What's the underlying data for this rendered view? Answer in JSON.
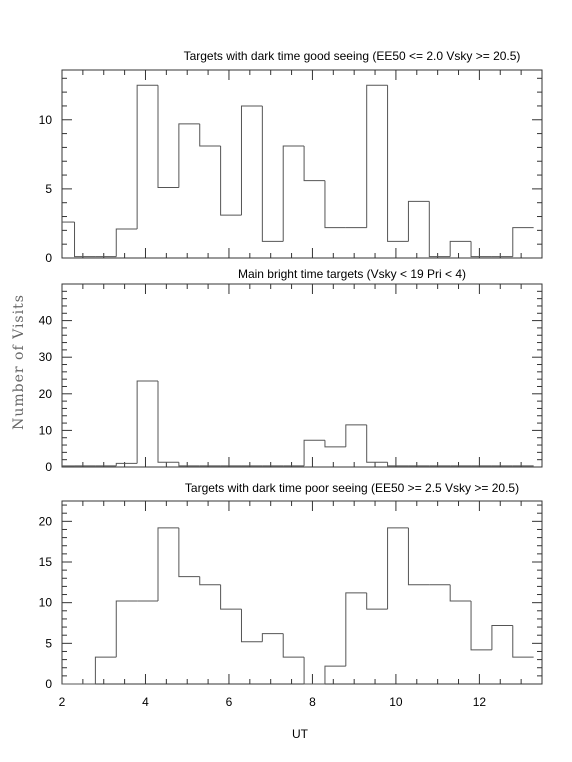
{
  "ylabel": "Number of Visits",
  "xlabel": "UT",
  "chart_data": [
    {
      "type": "bar",
      "title": "Targets with dark time good seeing (EE50 <= 2.0 Vsky >= 20.5)",
      "bin_edges": [
        1.95,
        2.3,
        2.8,
        3.3,
        3.8,
        4.3,
        4.8,
        5.3,
        5.8,
        6.3,
        6.8,
        7.3,
        7.8,
        8.3,
        8.8,
        9.3,
        9.8,
        10.3,
        10.8,
        11.3,
        11.8,
        12.3,
        12.8,
        13.3
      ],
      "values": [
        2.6,
        0.1,
        0.1,
        2.1,
        12.5,
        5.1,
        9.7,
        8.1,
        3.1,
        11.0,
        1.2,
        8.1,
        5.6,
        2.2,
        2.2,
        12.5,
        1.2,
        4.1,
        0.1,
        1.2,
        0.1,
        0.1,
        2.2
      ],
      "xlim": [
        2,
        13.5
      ],
      "ylim": [
        0,
        13.6
      ],
      "yticks": [
        0,
        5,
        10
      ],
      "xticks": [
        2,
        4,
        6,
        8,
        10,
        12
      ],
      "show_x_tick_labels": false
    },
    {
      "type": "bar",
      "title": "Main bright time targets (Vsky < 19 Pri < 4)",
      "bin_edges": [
        1.95,
        2.3,
        2.8,
        3.3,
        3.8,
        4.3,
        4.8,
        5.3,
        5.8,
        6.3,
        6.8,
        7.3,
        7.8,
        8.3,
        8.8,
        9.3,
        9.8,
        10.3,
        10.8,
        11.3,
        11.8,
        12.3,
        12.8,
        13.3
      ],
      "values": [
        0.3,
        0.3,
        0.3,
        1.0,
        23.5,
        1.3,
        0.3,
        0.3,
        0.3,
        0.3,
        0.3,
        0.3,
        7.3,
        5.5,
        11.5,
        1.3,
        0.3,
        0.3,
        0.3,
        0.3,
        0.3,
        0.3,
        0.3
      ],
      "xlim": [
        2,
        13.5
      ],
      "ylim": [
        0,
        50
      ],
      "yticks": [
        0,
        10,
        20,
        30,
        40
      ],
      "xticks": [
        2,
        4,
        6,
        8,
        10,
        12
      ],
      "show_x_tick_labels": false
    },
    {
      "type": "bar",
      "title": "Targets with dark time poor seeing (EE50 >= 2.5 Vsky >= 20.5)",
      "bin_edges": [
        1.95,
        2.3,
        2.8,
        3.3,
        3.8,
        4.3,
        4.8,
        5.3,
        5.8,
        6.3,
        6.8,
        7.3,
        7.8,
        8.3,
        8.8,
        9.3,
        9.8,
        10.3,
        10.8,
        11.3,
        11.8,
        12.3,
        12.8,
        13.3
      ],
      "values": [
        0,
        0,
        3.3,
        10.2,
        10.2,
        19.2,
        13.2,
        12.2,
        9.2,
        5.2,
        6.2,
        3.3,
        0,
        2.2,
        11.2,
        9.2,
        19.2,
        12.2,
        12.2,
        10.2,
        4.2,
        7.2,
        3.3
      ],
      "xlim": [
        2,
        13.5
      ],
      "ylim": [
        0,
        22.5
      ],
      "yticks": [
        0,
        5,
        10,
        15,
        20
      ],
      "xticks": [
        2,
        4,
        6,
        8,
        10,
        12
      ],
      "show_x_tick_labels": true
    }
  ]
}
